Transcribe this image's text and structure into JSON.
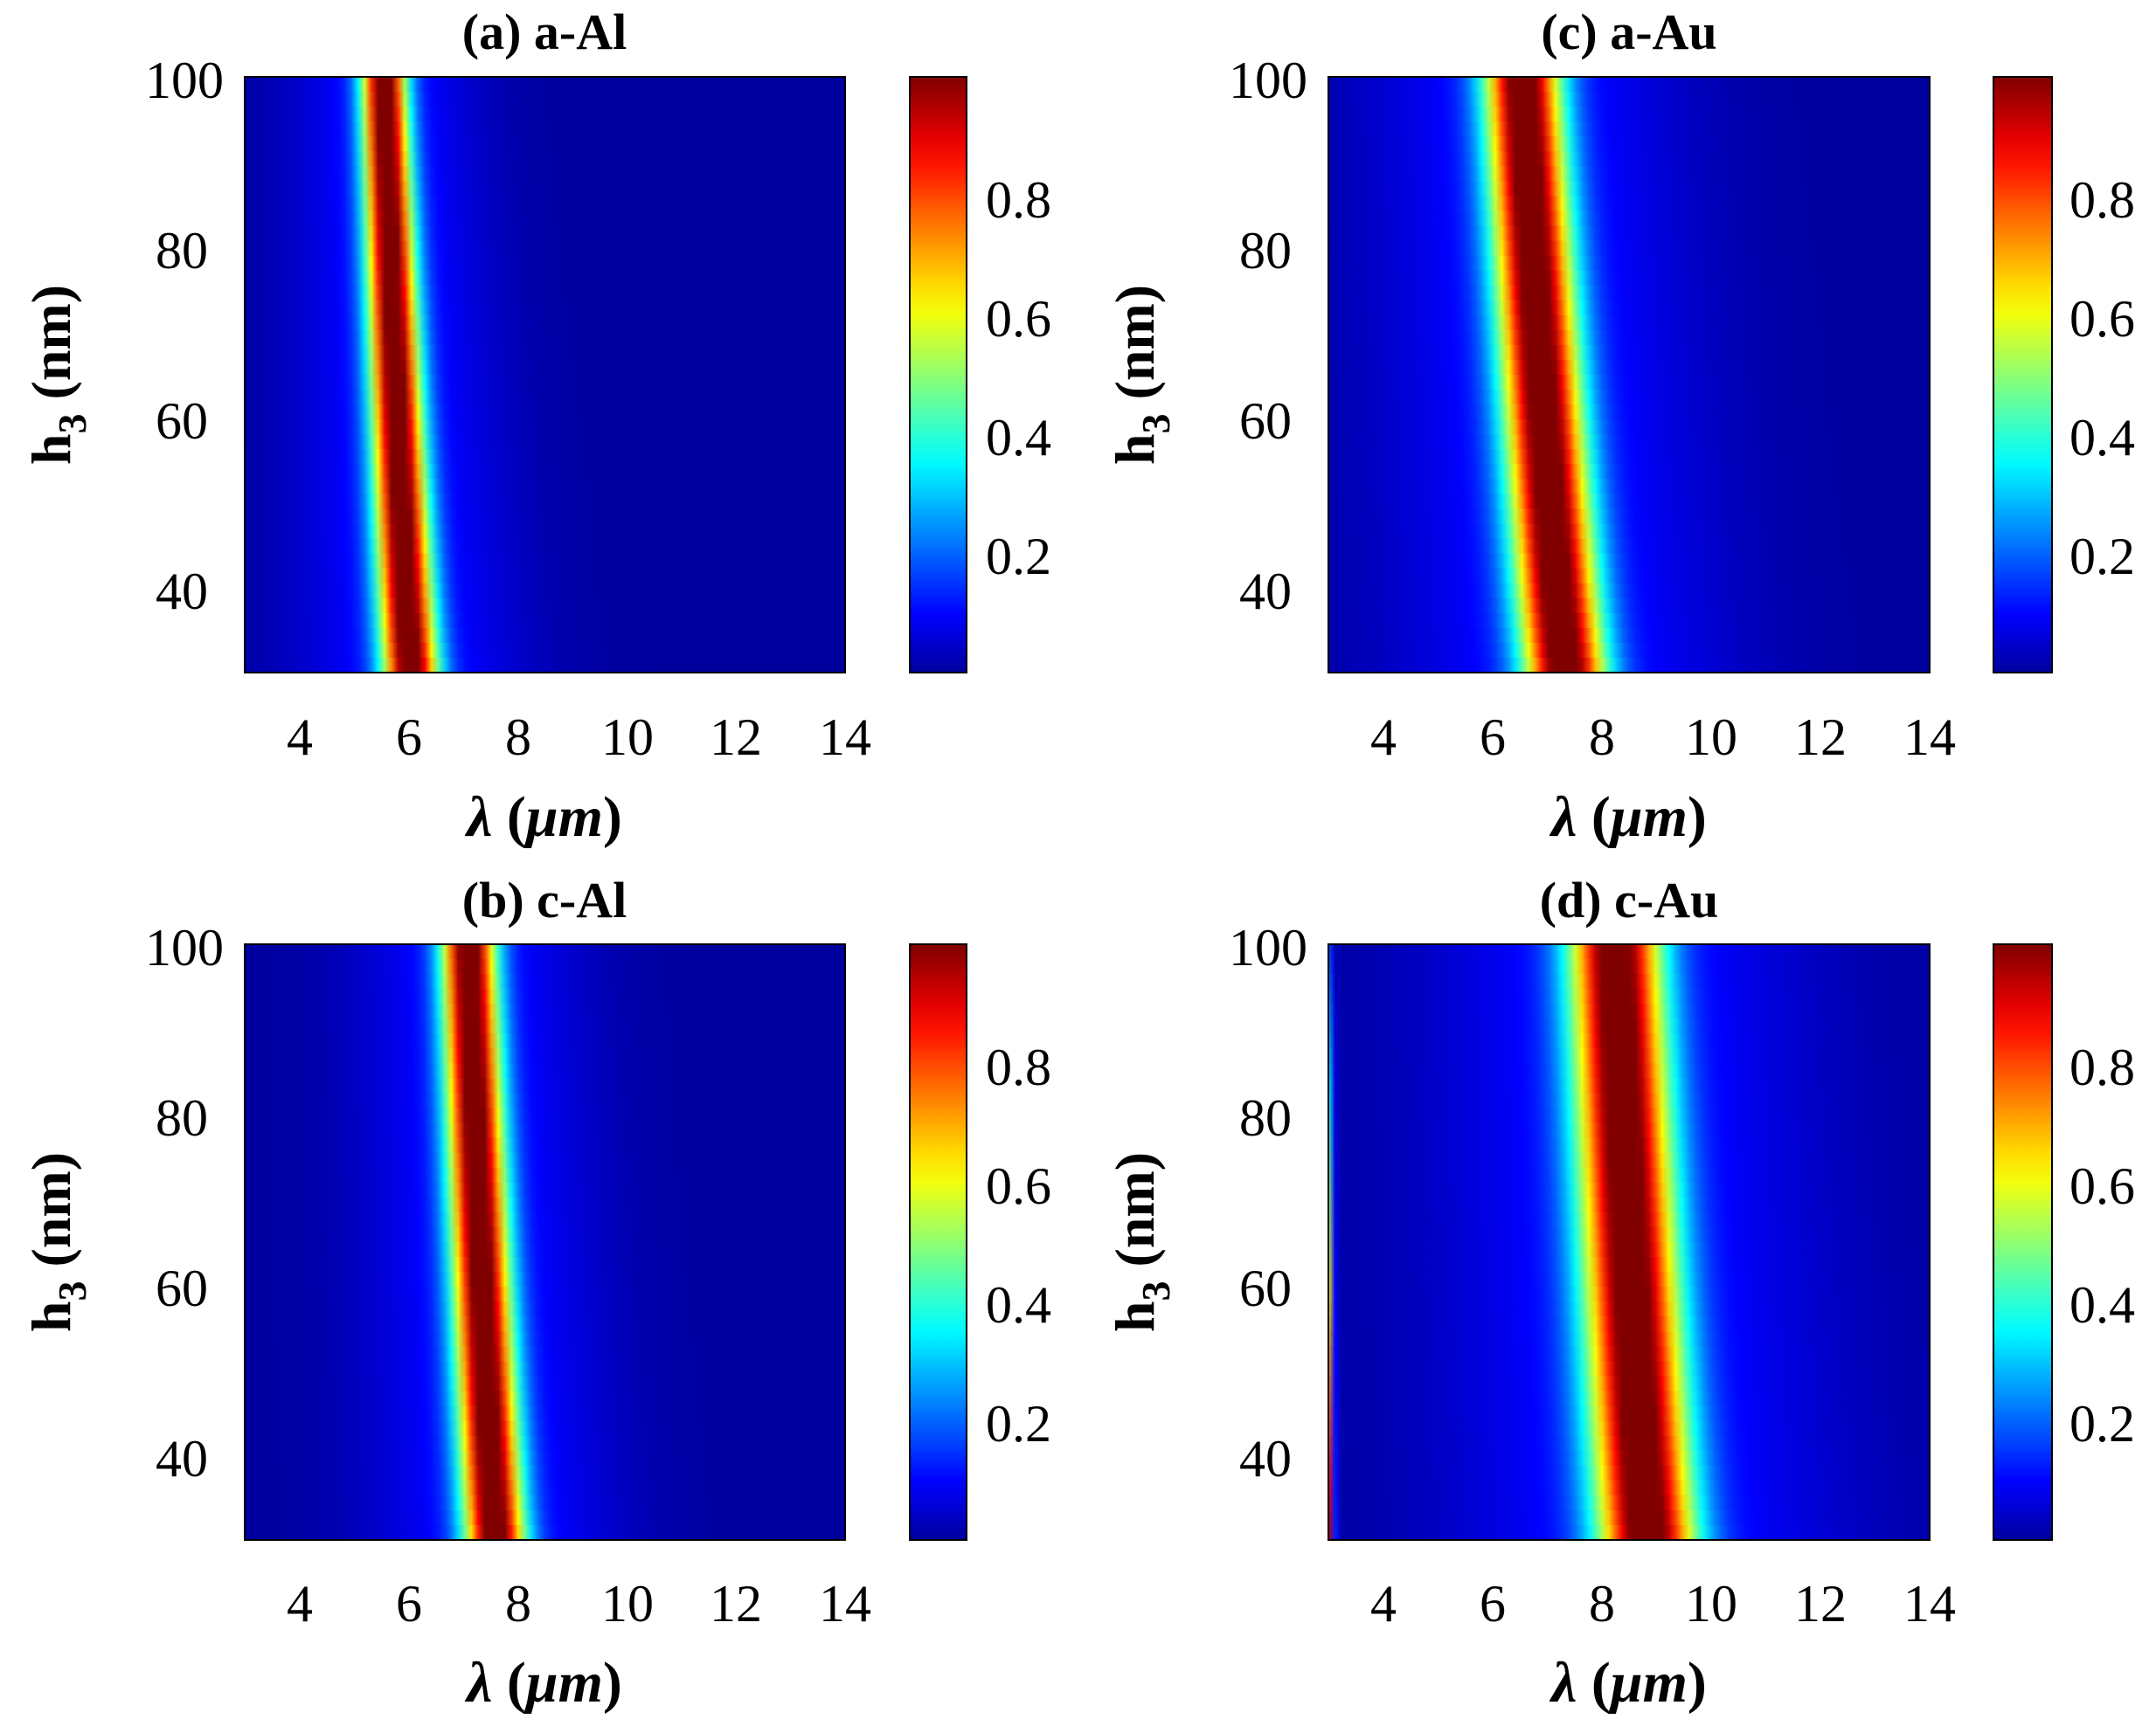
{
  "chart_data": [
    {
      "type": "heatmap",
      "panel": "a",
      "title": "(a) a-Al",
      "xlabel": {
        "symbol": "λ",
        "open": " (",
        "unit": "μm",
        "close": ")"
      },
      "ylabel": {
        "main": "h",
        "sub": "3",
        "unit": " (nm)"
      },
      "xlim": [
        3,
        14
      ],
      "ylim": [
        30,
        100
      ],
      "xticks": [
        "4",
        "6",
        "8",
        "10",
        "12",
        "14"
      ],
      "yticks": [
        "40",
        "60",
        "80",
        "100"
      ],
      "colorbar": {
        "range": [
          0,
          1
        ],
        "ticks": [
          "0.2",
          "0.4",
          "0.6",
          "0.8"
        ]
      },
      "peak_center_um": {
        "h30": 6.05,
        "h100": 5.55
      },
      "peak_width_um": {
        "h30": 0.35,
        "h100": 0.28
      },
      "edge_band": false
    },
    {
      "type": "heatmap",
      "panel": "b",
      "title": "(b) c-Al",
      "xlabel": {
        "symbol": "λ",
        "open": " (",
        "unit": "μm",
        "close": ")"
      },
      "ylabel": {
        "main": "h",
        "sub": "3",
        "unit": " (nm)"
      },
      "xlim": [
        3,
        14
      ],
      "ylim": [
        30,
        100
      ],
      "xticks": [
        "4",
        "6",
        "8",
        "10",
        "12",
        "14"
      ],
      "yticks": [
        "40",
        "60",
        "80",
        "100"
      ],
      "colorbar": {
        "range": [
          0,
          1
        ],
        "ticks": [
          "0.2",
          "0.4",
          "0.6",
          "0.8"
        ]
      },
      "peak_center_um": {
        "h30": 7.6,
        "h100": 7.1
      },
      "peak_width_um": {
        "h30": 0.38,
        "h100": 0.34
      },
      "edge_band": false
    },
    {
      "type": "heatmap",
      "panel": "c",
      "title": "(c) a-Au",
      "xlabel": {
        "symbol": "λ",
        "open": " (",
        "unit": "μm",
        "close": ")"
      },
      "ylabel": {
        "main": "h",
        "sub": "3",
        "unit": " (nm)"
      },
      "xlim": [
        3,
        14
      ],
      "ylim": [
        30,
        100
      ],
      "xticks": [
        "4",
        "6",
        "8",
        "10",
        "12",
        "14"
      ],
      "yticks": [
        "40",
        "60",
        "80",
        "100"
      ],
      "colorbar": {
        "range": [
          0,
          1
        ],
        "ticks": [
          "0.2",
          "0.4",
          "0.6",
          "0.8"
        ]
      },
      "peak_center_um": {
        "h30": 7.35,
        "h100": 6.55
      },
      "peak_width_um": {
        "h30": 0.52,
        "h100": 0.48
      },
      "edge_band": false
    },
    {
      "type": "heatmap",
      "panel": "d",
      "title": "(d) c-Au",
      "xlabel": {
        "symbol": "λ",
        "open": " (",
        "unit": "μm",
        "close": ")"
      },
      "ylabel": {
        "main": "h",
        "sub": "3",
        "unit": " (nm)"
      },
      "xlim": [
        3,
        14
      ],
      "ylim": [
        30,
        100
      ],
      "xticks": [
        "4",
        "6",
        "8",
        "10",
        "12",
        "14"
      ],
      "yticks": [
        "40",
        "60",
        "80",
        "100"
      ],
      "colorbar": {
        "range": [
          0,
          1
        ],
        "ticks": [
          "0.2",
          "0.4",
          "0.6",
          "0.8"
        ]
      },
      "peak_center_um": {
        "h30": 8.85,
        "h100": 8.25
      },
      "peak_width_um": {
        "h30": 0.62,
        "h100": 0.58
      },
      "edge_band": true
    }
  ]
}
